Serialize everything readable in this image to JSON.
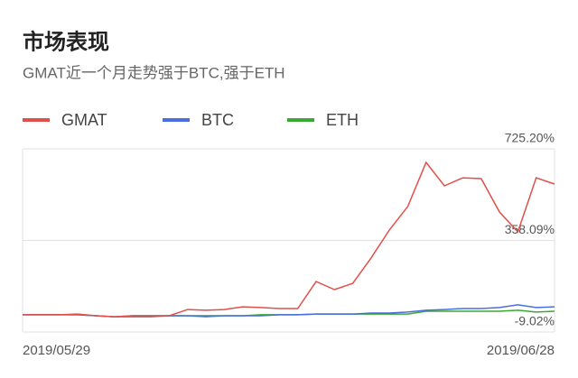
{
  "chart_data": {
    "type": "line",
    "title": "市场表现",
    "subtitle": "GMAT近一个月走势强于BTC,强于ETH",
    "x": [
      "2019/05/29",
      null,
      null,
      null,
      null,
      null,
      null,
      null,
      null,
      null,
      null,
      null,
      null,
      null,
      null,
      null,
      null,
      null,
      null,
      null,
      null,
      null,
      null,
      null,
      null,
      null,
      null,
      null,
      null,
      "2019/06/28"
    ],
    "series": [
      {
        "name": "GMAT",
        "color": "#e0504a",
        "values": [
          60,
          60,
          60,
          63,
          56,
          52,
          56,
          56,
          56,
          81,
          78,
          81,
          92,
          89,
          85,
          85,
          193,
          161,
          186,
          288,
          400,
          494,
          671,
          577,
          609,
          606,
          472,
          392,
          609,
          584
        ]
      },
      {
        "name": "BTC",
        "color": "#4a6ee0",
        "values": [
          60,
          60,
          60,
          60,
          56,
          52,
          56,
          56,
          56,
          56,
          56,
          56,
          56,
          56,
          60,
          60,
          63,
          63,
          63,
          67,
          67,
          71,
          78,
          81,
          85,
          85,
          89,
          100,
          89,
          92
        ]
      },
      {
        "name": "ETH",
        "color": "#3aa832",
        "values": [
          60,
          60,
          60,
          60,
          56,
          52,
          52,
          52,
          56,
          56,
          52,
          56,
          56,
          60,
          60,
          60,
          63,
          63,
          63,
          63,
          63,
          63,
          74,
          74,
          74,
          74,
          74,
          78,
          71,
          74
        ]
      }
    ],
    "ylim": [
      -9.02,
      725.2
    ],
    "yticks": [
      {
        "value": -9.02,
        "label": "-9.02%"
      },
      {
        "value": 358.09,
        "label": "358.09%"
      },
      {
        "value": 725.2,
        "label": "725.20%"
      }
    ],
    "grid": true
  }
}
